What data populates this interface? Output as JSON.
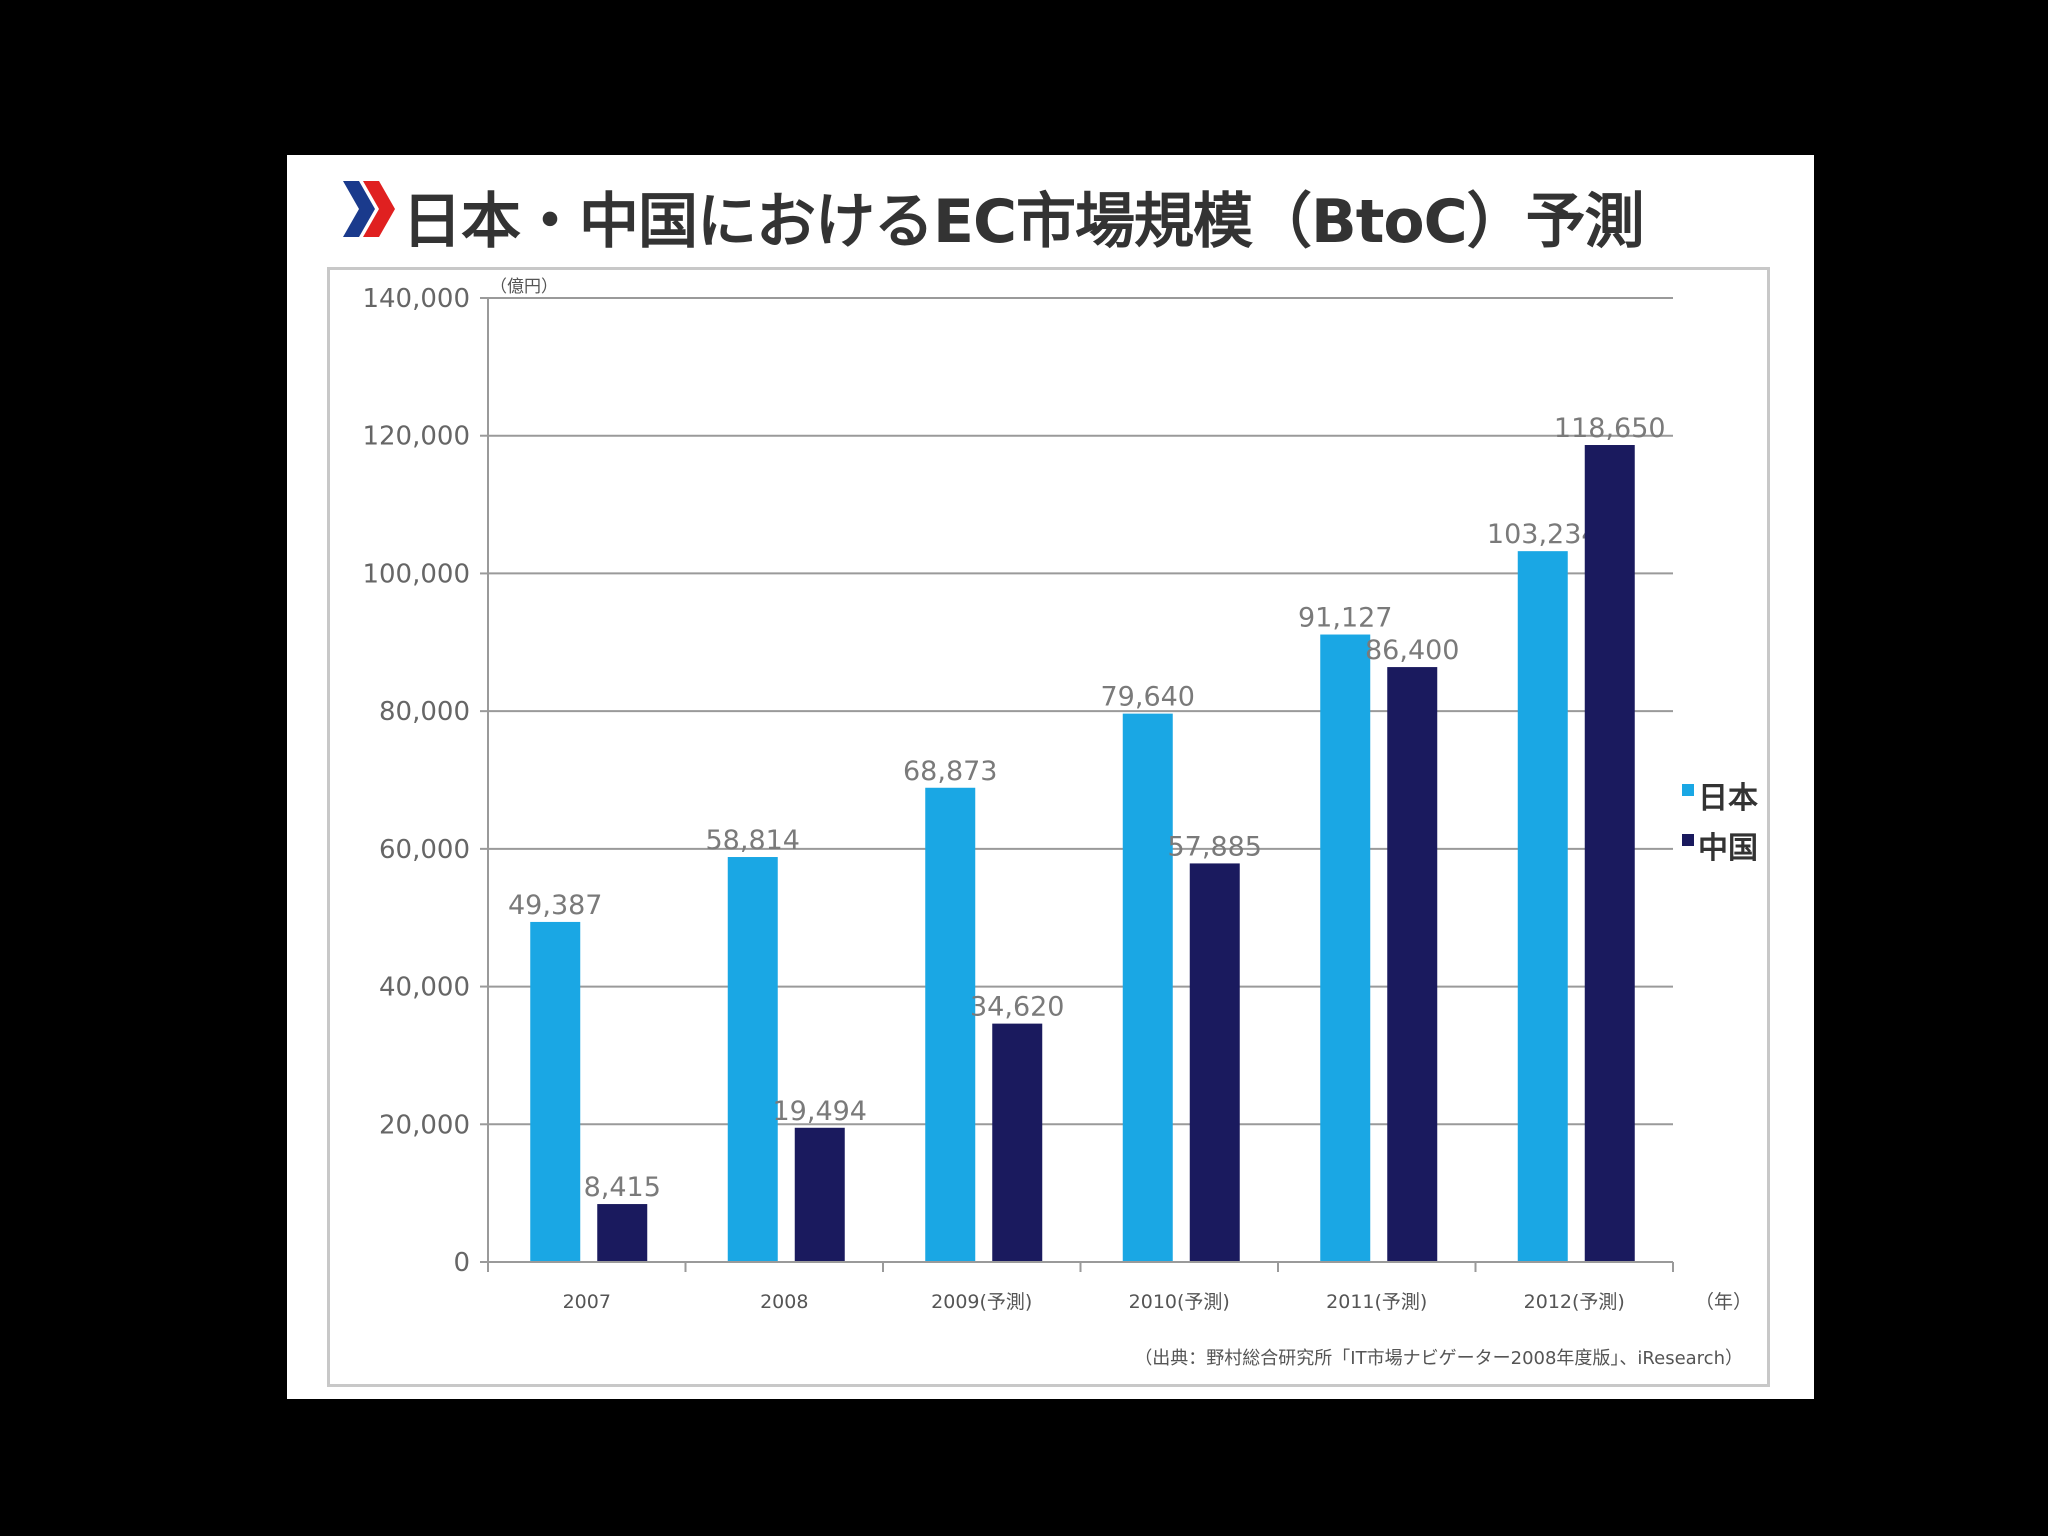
{
  "title": "日本・中国におけるEC市場規模（BtoC）予測",
  "colors": {
    "japan": "#1aa7e4",
    "china": "#1a1a5e",
    "chevron_blue": "#1a3a8c",
    "chevron_red": "#e02020",
    "grid": "#9a9a9a"
  },
  "chart_data": {
    "type": "bar",
    "y_unit": "（億円）",
    "x_unit": "（年）",
    "categories": [
      "2007",
      "2008",
      "2009(予測)",
      "2010(予測)",
      "2011(予測)",
      "2012(予測)"
    ],
    "series": [
      {
        "name": "日本",
        "values": [
          49387,
          58814,
          68873,
          79640,
          91127,
          103234
        ]
      },
      {
        "name": "中国",
        "values": [
          8415,
          19494,
          34620,
          57885,
          86400,
          118650
        ]
      }
    ],
    "value_labels": [
      [
        "49,387",
        "58,814",
        "68,873",
        "79,640",
        "91,127",
        "103,234"
      ],
      [
        "8,415",
        "19,494",
        "34,620",
        "57,885",
        "86,400",
        "118,650"
      ]
    ],
    "ylim": [
      0,
      140000
    ],
    "yticks": [
      0,
      20000,
      40000,
      60000,
      80000,
      100000,
      120000,
      140000
    ],
    "ytick_labels": [
      "0",
      "20,000",
      "40,000",
      "60,000",
      "80,000",
      "100,000",
      "120,000",
      "140,000"
    ],
    "grid": true,
    "legend_position": "right",
    "source": "（出典：野村総合研究所「IT市場ナビゲーター2008年度版」、iResearch）"
  }
}
